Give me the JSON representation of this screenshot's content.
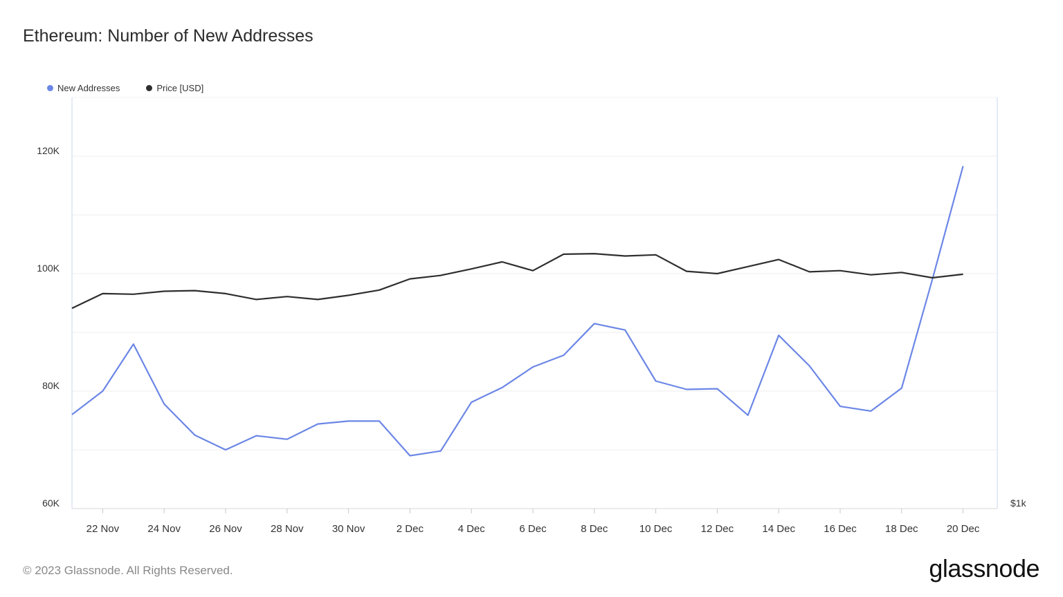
{
  "title": "Ethereum: Number of New Addresses",
  "footer": "© 2023 Glassnode. All Rights Reserved.",
  "logo": "glassnode",
  "colors": {
    "new_addresses": "#6b86e6",
    "price": "#2e2e2e",
    "grid": "#ececec",
    "axis": "#c9d6ee"
  },
  "chart_data": {
    "type": "line",
    "legend_position": "top-left",
    "grid": true,
    "x": [
      "21 Nov",
      "22 Nov",
      "23 Nov",
      "24 Nov",
      "25 Nov",
      "26 Nov",
      "27 Nov",
      "28 Nov",
      "29 Nov",
      "30 Nov",
      "1 Dec",
      "2 Dec",
      "3 Dec",
      "4 Dec",
      "5 Dec",
      "6 Dec",
      "7 Dec",
      "8 Dec",
      "9 Dec",
      "10 Dec",
      "11 Dec",
      "12 Dec",
      "13 Dec",
      "14 Dec",
      "15 Dec",
      "16 Dec",
      "17 Dec",
      "18 Dec",
      "19 Dec",
      "20 Dec"
    ],
    "x_tick_labels": [
      "22 Nov",
      "24 Nov",
      "26 Nov",
      "28 Nov",
      "30 Nov",
      "2 Dec",
      "4 Dec",
      "6 Dec",
      "8 Dec",
      "10 Dec",
      "12 Dec",
      "14 Dec",
      "16 Dec",
      "18 Dec",
      "20 Dec"
    ],
    "y_left": {
      "range": [
        60000,
        130000
      ],
      "ticks": [
        60000,
        80000,
        100000,
        120000
      ],
      "tick_labels": [
        "60K",
        "80K",
        "100K",
        "120K"
      ]
    },
    "y_right": {
      "tick_labels": [
        "$1k"
      ]
    },
    "series": [
      {
        "name": "New Addresses",
        "axis": "left",
        "values": [
          76000,
          80000,
          88000,
          77800,
          72500,
          70000,
          72400,
          71800,
          74400,
          74900,
          74900,
          69000,
          69800,
          78100,
          80600,
          84100,
          86100,
          91500,
          90400,
          81700,
          80300,
          80400,
          75900,
          89500,
          84300,
          77400,
          76600,
          80500,
          99000,
          118300
        ]
      },
      {
        "name": "Price [USD]",
        "axis": "left_scaled",
        "values": [
          94100,
          96600,
          96500,
          97000,
          97100,
          96600,
          95600,
          96100,
          95600,
          96300,
          97200,
          99100,
          99700,
          100800,
          102000,
          100500,
          103300,
          103400,
          103000,
          103200,
          100400,
          100000,
          101200,
          102400,
          100300,
          100500,
          99800,
          100200,
          99300,
          99900
        ]
      }
    ]
  }
}
